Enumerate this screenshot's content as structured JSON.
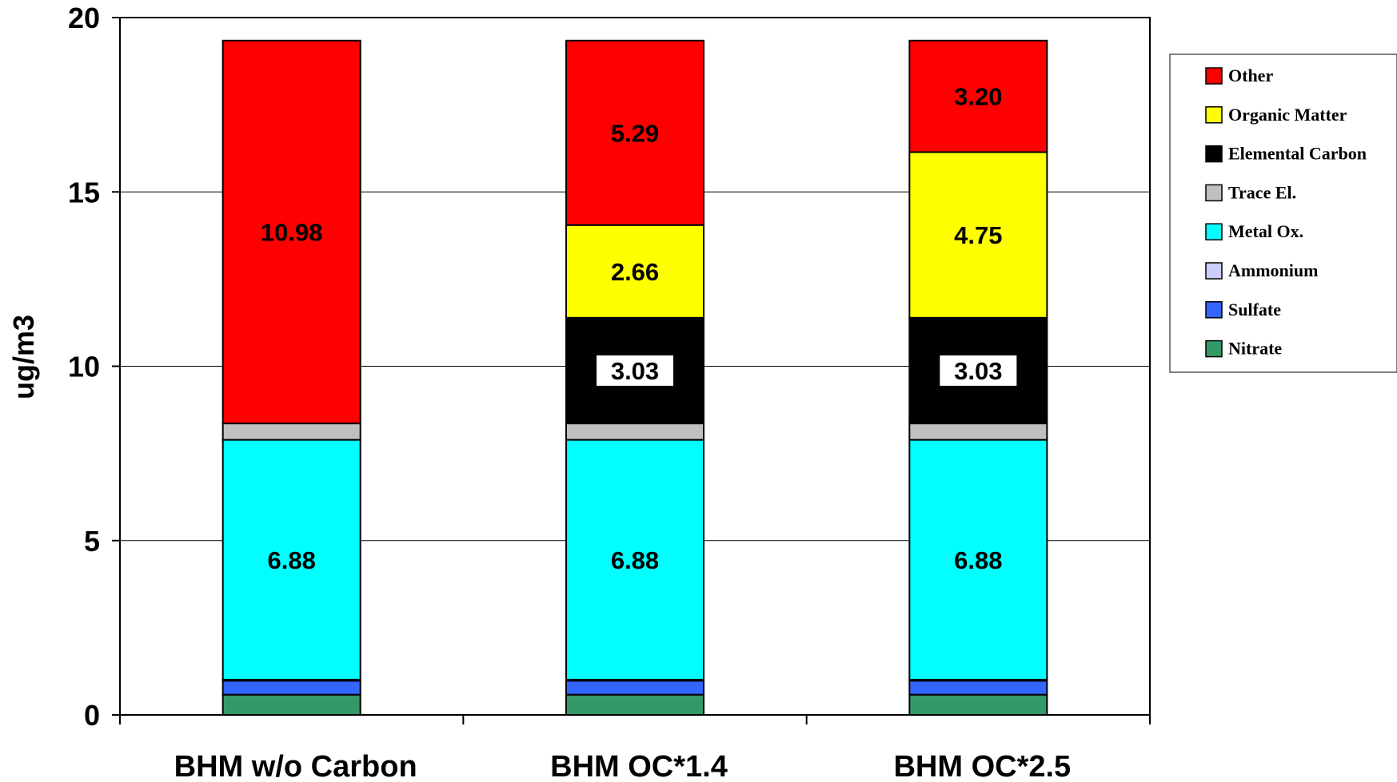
{
  "chart_data": {
    "type": "bar",
    "stacked": true,
    "ylabel": "ug/m3",
    "xlabel": "",
    "ylim": [
      0,
      20
    ],
    "yticks": [
      0,
      5,
      10,
      15,
      20
    ],
    "grid": true,
    "legend_position": "right",
    "categories": [
      "BHM w/o Carbon",
      "BHM OC*1.4",
      "BHM OC*2.5"
    ],
    "series": [
      {
        "name": "Nitrate",
        "color": "#339966",
        "values": [
          0.58,
          0.58,
          0.58
        ],
        "labels": [
          "",
          "",
          ""
        ]
      },
      {
        "name": "Sulfate",
        "color": "#3366ff",
        "values": [
          0.4,
          0.4,
          0.4
        ],
        "labels": [
          "",
          "",
          ""
        ]
      },
      {
        "name": "Ammonium",
        "color": "#ccccff",
        "values": [
          0.03,
          0.03,
          0.03
        ],
        "labels": [
          "",
          "",
          ""
        ]
      },
      {
        "name": "Metal Ox.",
        "color": "#00ffff",
        "values": [
          6.88,
          6.88,
          6.88
        ],
        "labels": [
          "6.88",
          "6.88",
          "6.88"
        ]
      },
      {
        "name": "Trace El.",
        "color": "#c0c0c0",
        "values": [
          0.47,
          0.47,
          0.47
        ],
        "labels": [
          "",
          "",
          ""
        ]
      },
      {
        "name": "Elemental Carbon",
        "color": "#000000",
        "values": [
          0,
          3.03,
          3.03
        ],
        "labels": [
          "",
          "3.03",
          "3.03"
        ]
      },
      {
        "name": "Organic Matter",
        "color": "#ffff00",
        "values": [
          0,
          2.66,
          4.75
        ],
        "labels": [
          "",
          "2.66",
          "4.75"
        ]
      },
      {
        "name": "Other",
        "color": "#ff0000",
        "values": [
          10.98,
          5.29,
          3.2
        ],
        "labels": [
          "10.98",
          "5.29",
          "3.20"
        ]
      }
    ]
  }
}
